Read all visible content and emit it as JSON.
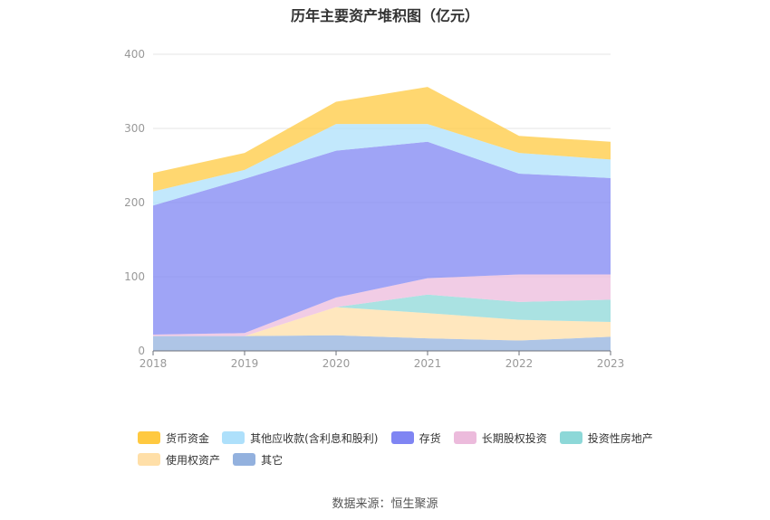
{
  "chart_data": {
    "type": "area",
    "stacked": true,
    "title": "历年主要资产堆积图（亿元）",
    "xlabel": "",
    "ylabel": "",
    "ylim": [
      0,
      400
    ],
    "yticks": [
      0,
      100,
      200,
      300,
      400
    ],
    "categories": [
      "2018",
      "2019",
      "2020",
      "2021",
      "2022",
      "2023"
    ],
    "series": [
      {
        "name": "其它",
        "color": "#93b1de",
        "values": [
          20,
          20,
          21,
          17,
          14,
          19
        ]
      },
      {
        "name": "使用权资产",
        "color": "#ffdfa8",
        "values": [
          0,
          0,
          38,
          34,
          28,
          20
        ]
      },
      {
        "name": "投资性房地产",
        "color": "#8dd8d8",
        "values": [
          0,
          0,
          0,
          25,
          24,
          30
        ]
      },
      {
        "name": "长期股权投资",
        "color": "#ecbbdc",
        "values": [
          2,
          4,
          13,
          22,
          37,
          34
        ]
      },
      {
        "name": "存货",
        "color": "#7f85f3",
        "values": [
          174,
          208,
          198,
          184,
          136,
          130
        ]
      },
      {
        "name": "其他应收款(含利息和股利)",
        "color": "#aee0fb",
        "values": [
          19,
          12,
          36,
          24,
          28,
          25
        ]
      },
      {
        "name": "货币资金",
        "color": "#ffc940",
        "values": [
          25,
          23,
          30,
          50,
          23,
          24
        ]
      }
    ],
    "legend": [
      {
        "name": "货币资金",
        "color": "#ffc940"
      },
      {
        "name": "其他应收款(含利息和股利)",
        "color": "#aee0fb"
      },
      {
        "name": "存货",
        "color": "#7f85f3"
      },
      {
        "name": "长期股权投资",
        "color": "#ecbbdc"
      },
      {
        "name": "投资性房地产",
        "color": "#8dd8d8"
      },
      {
        "name": "使用权资产",
        "color": "#ffdfa8"
      },
      {
        "name": "其它",
        "color": "#93b1de"
      }
    ],
    "legend_position": "bottom",
    "grid": true,
    "source": "数据来源：恒生聚源"
  }
}
